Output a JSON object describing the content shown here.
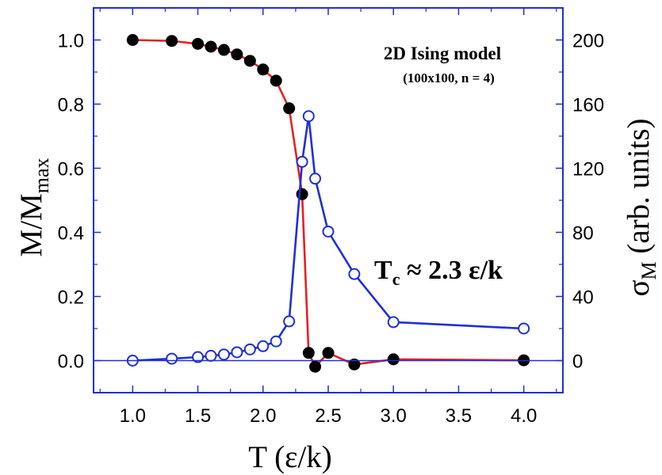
{
  "chart_data": {
    "type": "scatter",
    "title": "2D Ising model",
    "subtitle": "(100x100, n = 4)",
    "annotation": {
      "main": "T",
      "sub": "c",
      "rest": " ≈ 2.3 ε/k"
    },
    "xlabel": "T (ε/k)",
    "ylabel_left": {
      "main": "M/M",
      "sub": "max"
    },
    "ylabel_right": {
      "main": "σ",
      "sub": "M",
      "rest": " (arb. units)"
    },
    "xlim": [
      0.7,
      4.3
    ],
    "ylim_left": [
      -0.1,
      1.1
    ],
    "ylim_right": [
      -20,
      220
    ],
    "x_ticks": [
      "1.0",
      "1.5",
      "2.0",
      "2.5",
      "3.0",
      "3.5",
      "4.0"
    ],
    "y_ticks_left": [
      "0.0",
      "0.2",
      "0.4",
      "0.6",
      "0.8",
      "1.0"
    ],
    "y_ticks_right": [
      "0",
      "40",
      "80",
      "120",
      "160",
      "200"
    ],
    "grid": false,
    "zero_line": true,
    "colors": {
      "magnetization": "#e82020",
      "fluctuation": "#1f2fd6",
      "axes": "#1f2fd6",
      "text": "#000000"
    },
    "series": [
      {
        "name": "",
        "axis": "left",
        "marker": "filled-circle",
        "x": [
          1.0,
          1.3,
          1.5,
          1.6,
          1.7,
          1.8,
          1.9,
          2.0,
          2.1,
          2.2,
          2.3,
          2.35,
          2.4,
          2.5,
          2.7,
          3.0,
          4.0
        ],
        "y": [
          1.0,
          0.997,
          0.988,
          0.979,
          0.969,
          0.955,
          0.935,
          0.908,
          0.873,
          0.787,
          0.519,
          0.024,
          -0.019,
          0.024,
          -0.012,
          0.004,
          0.001
        ]
      },
      {
        "name": "",
        "axis": "right",
        "marker": "open-circle",
        "x": [
          1.0,
          1.3,
          1.5,
          1.6,
          1.7,
          1.8,
          1.9,
          2.0,
          2.1,
          2.2,
          2.3,
          2.35,
          2.4,
          2.5,
          2.7,
          3.0,
          4.0
        ],
        "y": [
          0.0,
          1.2,
          2.2,
          3.0,
          3.8,
          5.2,
          7.0,
          9.0,
          12.0,
          24.5,
          124.0,
          152.5,
          113.5,
          80.5,
          54.0,
          24.0,
          20.0
        ]
      }
    ]
  }
}
